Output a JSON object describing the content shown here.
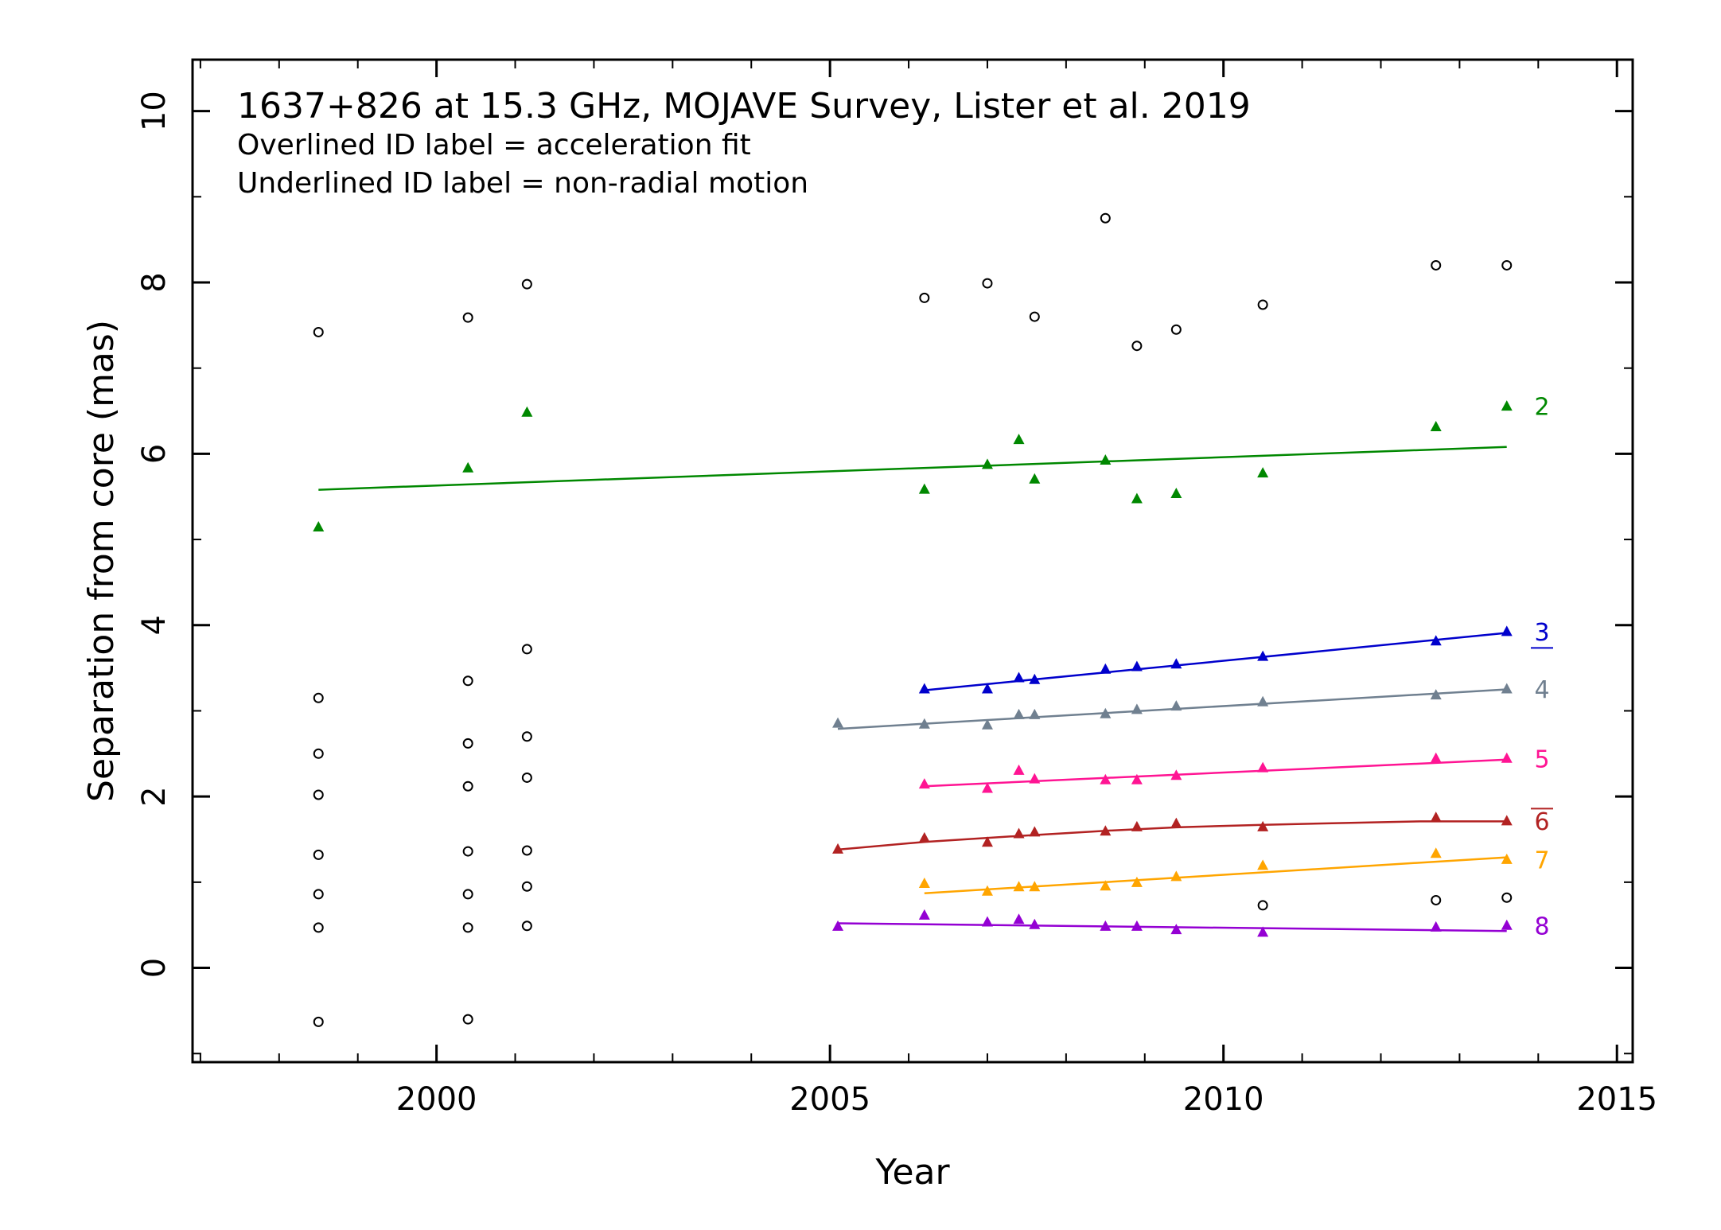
{
  "chart_data": {
    "type": "scatter",
    "title": "1637+826 at 15.3 GHz, MOJAVE Survey, Lister et al. 2019",
    "notes": [
      "Overlined ID label = acceleration fit",
      "Underlined ID label = non-radial motion"
    ],
    "xlabel": "Year",
    "ylabel": "Separation from core (mas)",
    "xlim": [
      1996.9,
      2015.2
    ],
    "ylim": [
      -1.1,
      10.6
    ],
    "xticks": [
      2000,
      2005,
      2010,
      2015
    ],
    "yticks": [
      0,
      2,
      4,
      6,
      8,
      10
    ],
    "x_tick_labels": [
      "2000",
      "2005",
      "2010",
      "2015"
    ],
    "y_tick_labels": [
      "0",
      "2",
      "4",
      "6",
      "8",
      "10"
    ],
    "grid": false,
    "unassigned": {
      "marker": "open-circle",
      "color": "#000000",
      "points": [
        [
          1998.5,
          7.42
        ],
        [
          1998.5,
          3.15
        ],
        [
          1998.5,
          2.5
        ],
        [
          1998.5,
          2.02
        ],
        [
          1998.5,
          1.32
        ],
        [
          1998.5,
          0.86
        ],
        [
          1998.5,
          0.47
        ],
        [
          1998.5,
          -0.63
        ],
        [
          2000.4,
          7.59
        ],
        [
          2000.4,
          3.35
        ],
        [
          2000.4,
          2.62
        ],
        [
          2000.4,
          2.12
        ],
        [
          2000.4,
          1.36
        ],
        [
          2000.4,
          0.86
        ],
        [
          2000.4,
          0.47
        ],
        [
          2000.4,
          -0.6
        ],
        [
          2001.15,
          7.98
        ],
        [
          2001.15,
          3.72
        ],
        [
          2001.15,
          2.7
        ],
        [
          2001.15,
          2.22
        ],
        [
          2001.15,
          1.37
        ],
        [
          2001.15,
          0.95
        ],
        [
          2001.15,
          0.49
        ],
        [
          2006.2,
          7.82
        ],
        [
          2007.0,
          7.99
        ],
        [
          2007.6,
          7.6
        ],
        [
          2008.5,
          8.75
        ],
        [
          2008.9,
          7.26
        ],
        [
          2009.4,
          7.45
        ],
        [
          2010.5,
          7.74
        ],
        [
          2012.7,
          8.2
        ],
        [
          2013.6,
          8.2
        ],
        [
          2010.5,
          0.73
        ],
        [
          2012.7,
          0.79
        ],
        [
          2013.6,
          0.82
        ]
      ]
    },
    "series": [
      {
        "name": "2",
        "label": "2",
        "label_style": "plain",
        "color": "#008800",
        "points": [
          [
            1998.5,
            5.14
          ],
          [
            2000.4,
            5.83
          ],
          [
            2001.15,
            6.48
          ],
          [
            2006.2,
            5.58
          ],
          [
            2007.0,
            5.87
          ],
          [
            2007.4,
            6.16
          ],
          [
            2007.6,
            5.7
          ],
          [
            2008.5,
            5.92
          ],
          [
            2008.9,
            5.47
          ],
          [
            2009.4,
            5.53
          ],
          [
            2010.5,
            5.77
          ],
          [
            2012.7,
            6.31
          ],
          [
            2013.6,
            6.55
          ]
        ],
        "fit": [
          [
            1998.5,
            5.58
          ],
          [
            2013.6,
            6.08
          ]
        ],
        "fit_type": "linear"
      },
      {
        "name": "3",
        "label": "3",
        "label_style": "underline",
        "color": "#0000cc",
        "points": [
          [
            2006.2,
            3.25
          ],
          [
            2007.0,
            3.25
          ],
          [
            2007.4,
            3.38
          ],
          [
            2007.6,
            3.36
          ],
          [
            2008.5,
            3.48
          ],
          [
            2008.9,
            3.51
          ],
          [
            2009.4,
            3.54
          ],
          [
            2010.5,
            3.63
          ],
          [
            2012.7,
            3.81
          ],
          [
            2013.6,
            3.92
          ]
        ],
        "fit": [
          [
            2006.2,
            3.24
          ],
          [
            2013.6,
            3.91
          ]
        ],
        "fit_type": "linear"
      },
      {
        "name": "4",
        "label": "4",
        "label_style": "plain",
        "color": "#708090",
        "points": [
          [
            2005.1,
            2.85
          ],
          [
            2006.2,
            2.84
          ],
          [
            2007.0,
            2.83
          ],
          [
            2007.4,
            2.95
          ],
          [
            2007.6,
            2.95
          ],
          [
            2008.5,
            2.96
          ],
          [
            2008.9,
            3.01
          ],
          [
            2009.4,
            3.05
          ],
          [
            2010.5,
            3.1
          ],
          [
            2012.7,
            3.18
          ],
          [
            2013.6,
            3.25
          ]
        ],
        "fit": [
          [
            2005.1,
            2.79
          ],
          [
            2013.6,
            3.25
          ]
        ],
        "fit_type": "linear"
      },
      {
        "name": "5",
        "label": "5",
        "label_style": "plain",
        "color": "#ff1493",
        "points": [
          [
            2006.2,
            2.14
          ],
          [
            2007.0,
            2.09
          ],
          [
            2007.4,
            2.3
          ],
          [
            2007.6,
            2.2
          ],
          [
            2008.5,
            2.19
          ],
          [
            2008.9,
            2.19
          ],
          [
            2009.4,
            2.24
          ],
          [
            2010.5,
            2.33
          ],
          [
            2012.7,
            2.44
          ],
          [
            2013.6,
            2.44
          ]
        ],
        "fit": [
          [
            2006.2,
            2.12
          ],
          [
            2013.6,
            2.43
          ]
        ],
        "fit_type": "linear"
      },
      {
        "name": "6",
        "label": "6",
        "label_style": "overline",
        "color": "#b22222",
        "points": [
          [
            2005.1,
            1.38
          ],
          [
            2006.2,
            1.51
          ],
          [
            2007.0,
            1.46
          ],
          [
            2007.4,
            1.56
          ],
          [
            2007.6,
            1.58
          ],
          [
            2008.5,
            1.59
          ],
          [
            2008.9,
            1.64
          ],
          [
            2009.4,
            1.68
          ],
          [
            2010.5,
            1.64
          ],
          [
            2012.7,
            1.75
          ],
          [
            2013.6,
            1.71
          ]
        ],
        "fit": [
          [
            2005.1,
            1.38
          ],
          [
            2006.2,
            1.47
          ],
          [
            2007.4,
            1.54
          ],
          [
            2008.5,
            1.6
          ],
          [
            2009.4,
            1.64
          ],
          [
            2010.5,
            1.67
          ],
          [
            2011.5,
            1.69
          ],
          [
            2012.5,
            1.71
          ],
          [
            2013.6,
            1.71
          ]
        ],
        "fit_type": "acceleration"
      },
      {
        "name": "7",
        "label": "7",
        "label_style": "plain",
        "color": "#ffa500",
        "points": [
          [
            2006.2,
            0.98
          ],
          [
            2007.0,
            0.89
          ],
          [
            2007.4,
            0.94
          ],
          [
            2007.6,
            0.94
          ],
          [
            2008.5,
            0.95
          ],
          [
            2008.9,
            0.99
          ],
          [
            2009.4,
            1.06
          ],
          [
            2010.5,
            1.19
          ],
          [
            2012.7,
            1.33
          ],
          [
            2013.6,
            1.26
          ]
        ],
        "fit": [
          [
            2006.2,
            0.87
          ],
          [
            2013.6,
            1.29
          ]
        ],
        "fit_type": "linear"
      },
      {
        "name": "8",
        "label": "8",
        "label_style": "plain",
        "color": "#9400d3",
        "points": [
          [
            2005.1,
            0.48
          ],
          [
            2006.2,
            0.61
          ],
          [
            2007.0,
            0.53
          ],
          [
            2007.4,
            0.56
          ],
          [
            2007.6,
            0.5
          ],
          [
            2008.5,
            0.48
          ],
          [
            2008.9,
            0.48
          ],
          [
            2009.4,
            0.44
          ],
          [
            2010.5,
            0.41
          ],
          [
            2012.7,
            0.47
          ],
          [
            2013.6,
            0.49
          ]
        ],
        "fit": [
          [
            2005.1,
            0.52
          ],
          [
            2013.6,
            0.43
          ]
        ],
        "fit_type": "linear"
      }
    ]
  }
}
